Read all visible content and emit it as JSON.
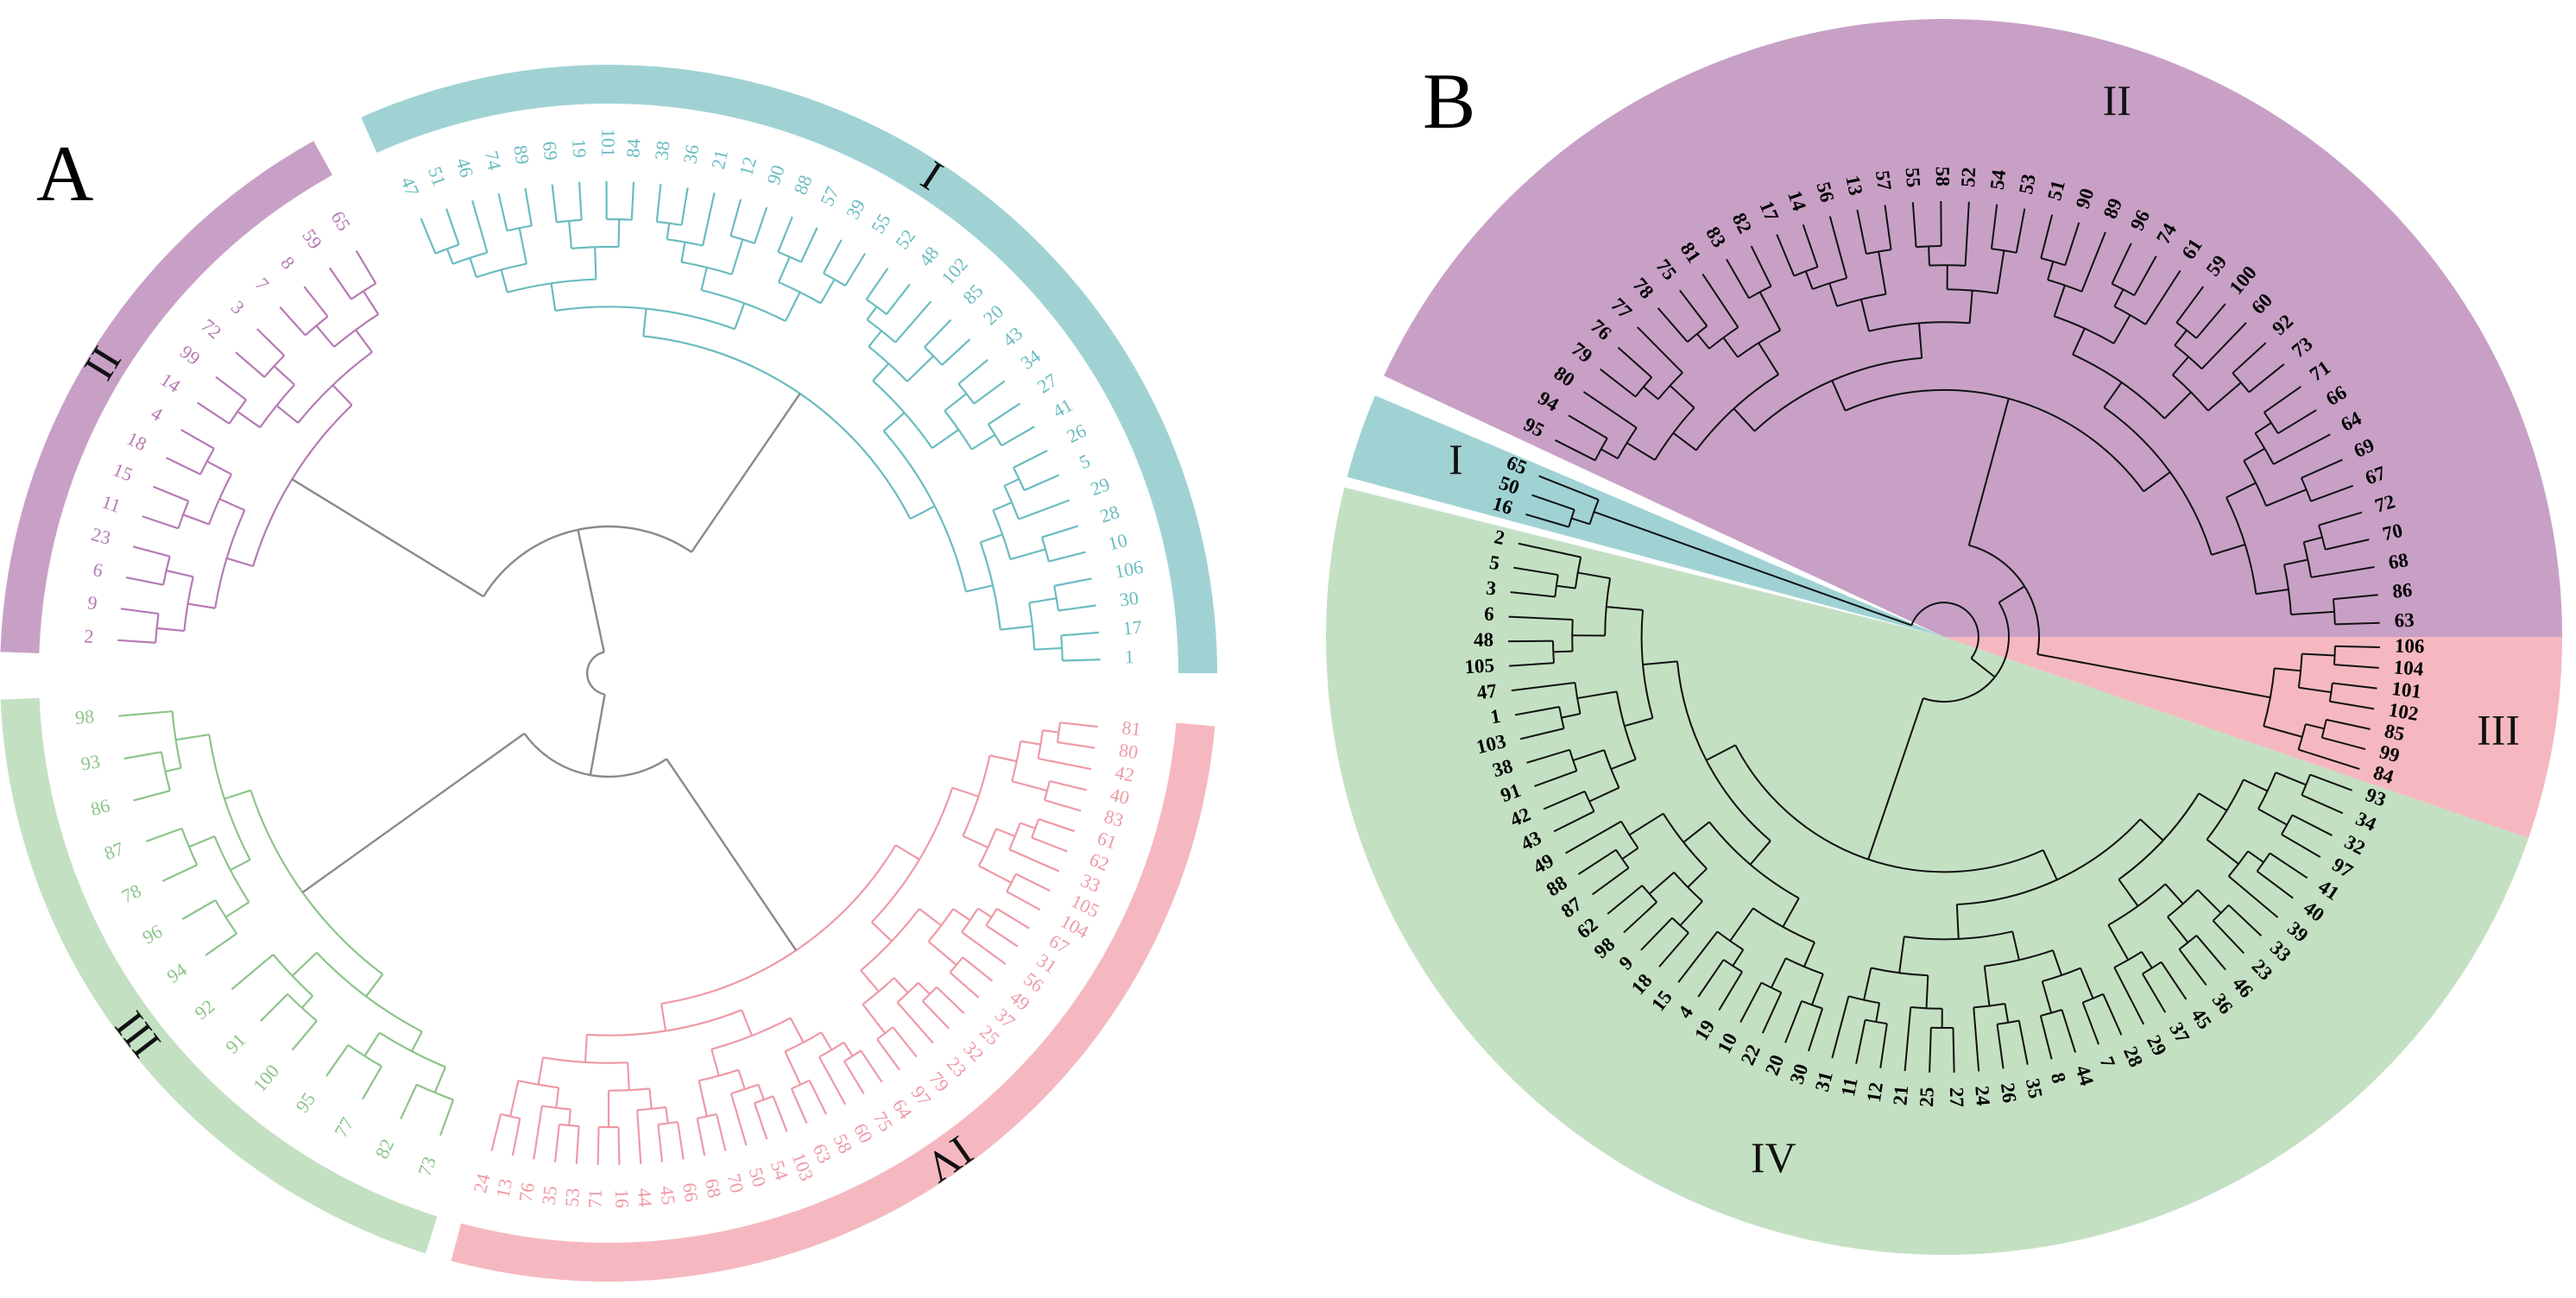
{
  "panels": [
    {
      "id": "A",
      "label": "A",
      "style": "circular dendrogram",
      "groups": [
        {
          "name": "I",
          "color": "#a0d2d4",
          "line_color": "#6bbcc0",
          "leaves": [
            "47",
            "51",
            "46",
            "74",
            "89",
            "69",
            "19",
            "101",
            "84",
            "38",
            "36",
            "21",
            "12",
            "90",
            "88",
            "57",
            "39",
            "55",
            "52",
            "48",
            "102",
            "85",
            "20",
            "43",
            "34",
            "27",
            "41",
            "26",
            "5",
            "29",
            "28",
            "10",
            "106",
            "30",
            "17",
            "1"
          ]
        },
        {
          "name": "II",
          "color": "#c8a0c6",
          "line_color": "#b67ab4",
          "leaves": [
            "2",
            "9",
            "6",
            "23",
            "11",
            "15",
            "18",
            "4",
            "14",
            "99",
            "72",
            "3",
            "7",
            "8",
            "59",
            "65"
          ]
        },
        {
          "name": "III",
          "color": "#c4e0c2",
          "line_color": "#8cc48a",
          "leaves": [
            "73",
            "82",
            "77",
            "95",
            "100",
            "91",
            "92",
            "94",
            "96",
            "78",
            "87",
            "86",
            "93",
            "98"
          ]
        },
        {
          "name": "IV",
          "color": "#f5b8c0",
          "line_color": "#ee9aa6",
          "leaves": [
            "81",
            "80",
            "42",
            "40",
            "83",
            "61",
            "62",
            "33",
            "105",
            "104",
            "67",
            "31",
            "56",
            "49",
            "37",
            "25",
            "32",
            "23",
            "79",
            "97",
            "64",
            "75",
            "60",
            "58",
            "63",
            "103",
            "54",
            "50",
            "70",
            "68",
            "66",
            "45",
            "44",
            "16",
            "71",
            "53",
            "35",
            "76",
            "13",
            "24"
          ]
        }
      ]
    },
    {
      "id": "B",
      "label": "B",
      "style": "fan dendrogram",
      "groups": [
        {
          "name": "I",
          "color": "#a0d2d4",
          "leaves": [
            "16",
            "50",
            "65"
          ]
        },
        {
          "name": "II",
          "color": "#c8a0c6",
          "leaves": [
            "95",
            "94",
            "80",
            "79",
            "76",
            "77",
            "78",
            "75",
            "81",
            "83",
            "82",
            "17",
            "14",
            "56",
            "13",
            "57",
            "55",
            "58",
            "52",
            "54",
            "53",
            "51",
            "90",
            "89",
            "96",
            "74",
            "61",
            "59",
            "100",
            "60",
            "92",
            "73",
            "71",
            "66",
            "64",
            "69",
            "67",
            "72",
            "70",
            "68",
            "86",
            "63"
          ]
        },
        {
          "name": "III",
          "color": "#f5b8c0",
          "leaves": [
            "106",
            "104",
            "101",
            "102",
            "85",
            "99",
            "84"
          ]
        },
        {
          "name": "IV",
          "color": "#c4e0c2",
          "leaves": [
            "93",
            "34",
            "32",
            "97",
            "41",
            "40",
            "39",
            "33",
            "23",
            "46",
            "36",
            "45",
            "37",
            "29",
            "28",
            "7",
            "44",
            "8",
            "35",
            "26",
            "24",
            "27",
            "25",
            "21",
            "12",
            "11",
            "31",
            "30",
            "20",
            "22",
            "10",
            "19",
            "4",
            "15",
            "18",
            "9",
            "98",
            "62",
            "87",
            "88",
            "49",
            "43",
            "42",
            "91",
            "38",
            "103",
            "1",
            "47",
            "105",
            "48",
            "6",
            "3",
            "5",
            "2"
          ]
        }
      ]
    }
  ]
}
